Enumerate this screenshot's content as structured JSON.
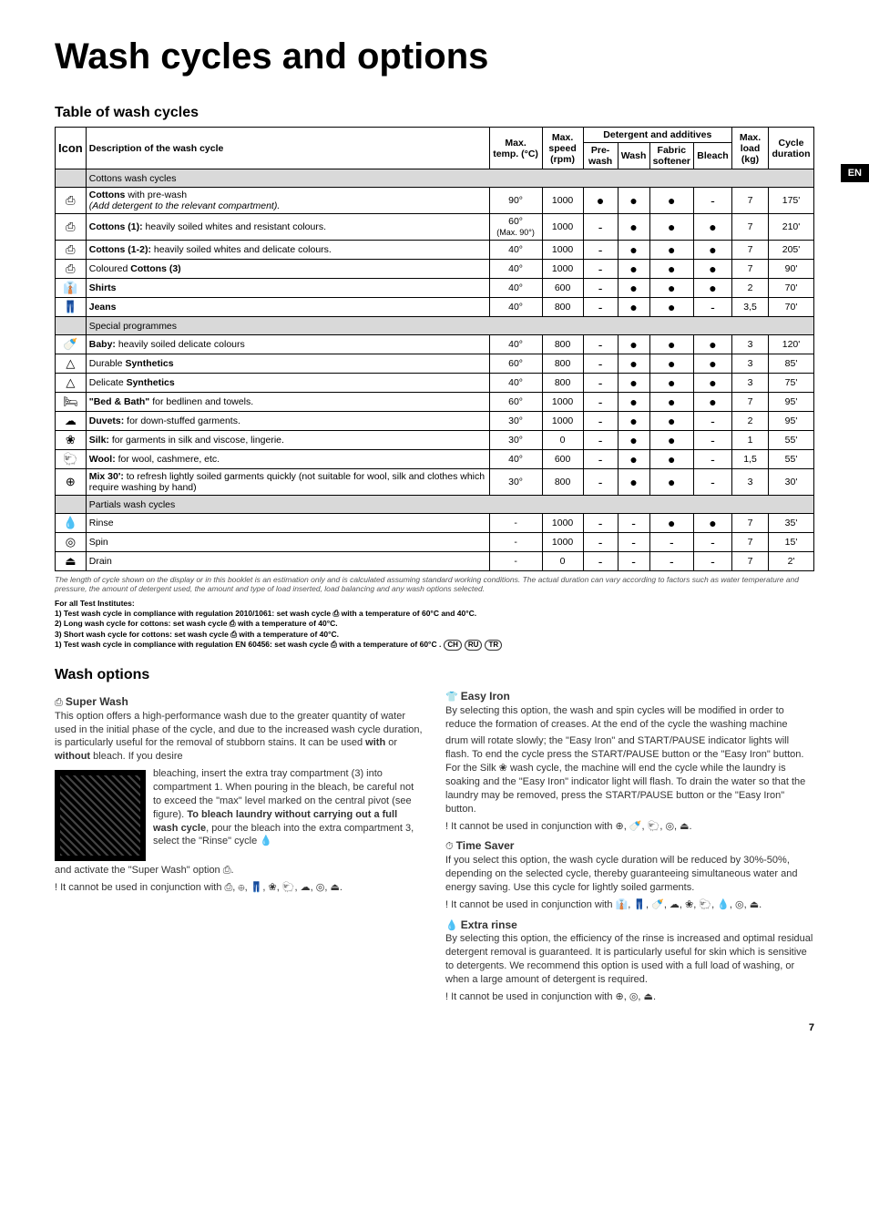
{
  "page_title": "Wash cycles and options",
  "lang_tab": "EN",
  "table_title": "Table of wash cycles",
  "headers": {
    "icon": "Icon",
    "desc": "Description of the wash cycle",
    "temp": "Max. temp. (°C)",
    "speed": "Max. speed (rpm)",
    "det_group": "Detergent and additives",
    "prewash": "Pre-wash",
    "wash": "Wash",
    "softener": "Fabric softener",
    "bleach": "Bleach",
    "load": "Max. load (kg)",
    "duration": "Cycle duration"
  },
  "sections": [
    {
      "name": "Cottons wash cycles",
      "rows": [
        {
          "icon": "⎙",
          "desc_bold": "Cottons",
          "desc_rest": " with pre-wash",
          "desc_italic": "(Add detergent to the relevant compartment).",
          "temp": "90°",
          "speed": "1000",
          "pre": "●",
          "wash": "●",
          "soft": "●",
          "bleach": "-",
          "load": "7",
          "dur": "175'"
        },
        {
          "icon": "⎙",
          "desc_bold": "Cottons (1):",
          "desc_rest": " heavily soiled whites and resistant colours.",
          "temp": "60°",
          "temp2": "(Max. 90°)",
          "speed": "1000",
          "pre": "-",
          "wash": "●",
          "soft": "●",
          "bleach": "●",
          "load": "7",
          "dur": "210'"
        },
        {
          "icon": "⎙",
          "desc_bold": "Cottons (1-2):",
          "desc_rest": " heavily soiled whites and delicate colours.",
          "temp": "40°",
          "speed": "1000",
          "pre": "-",
          "wash": "●",
          "soft": "●",
          "bleach": "●",
          "load": "7",
          "dur": "205'"
        },
        {
          "icon": "⎙",
          "desc_bold": "",
          "desc_rest": "Coloured ",
          "desc_bold2": "Cottons (3)",
          "temp": "40°",
          "speed": "1000",
          "pre": "-",
          "wash": "●",
          "soft": "●",
          "bleach": "●",
          "load": "7",
          "dur": "90'"
        },
        {
          "icon": "👔",
          "desc_bold": "Shirts",
          "desc_rest": "",
          "temp": "40°",
          "speed": "600",
          "pre": "-",
          "wash": "●",
          "soft": "●",
          "bleach": "●",
          "load": "2",
          "dur": "70'"
        },
        {
          "icon": "👖",
          "desc_bold": "Jeans",
          "desc_rest": "",
          "temp": "40°",
          "speed": "800",
          "pre": "-",
          "wash": "●",
          "soft": "●",
          "bleach": "-",
          "load": "3,5",
          "dur": "70'"
        }
      ]
    },
    {
      "name": "Special programmes",
      "rows": [
        {
          "icon": "🍼",
          "desc_bold": "Baby:",
          "desc_rest": " heavily soiled delicate colours",
          "temp": "40°",
          "speed": "800",
          "pre": "-",
          "wash": "●",
          "soft": "●",
          "bleach": "●",
          "load": "3",
          "dur": "120'"
        },
        {
          "icon": "△",
          "desc_bold": "",
          "desc_rest": "Durable ",
          "desc_bold2": "Synthetics",
          "temp": "60°",
          "speed": "800",
          "pre": "-",
          "wash": "●",
          "soft": "●",
          "bleach": "●",
          "load": "3",
          "dur": "85'"
        },
        {
          "icon": "△",
          "desc_bold": "",
          "desc_rest": "Delicate ",
          "desc_bold2": "Synthetics",
          "temp": "40°",
          "speed": "800",
          "pre": "-",
          "wash": "●",
          "soft": "●",
          "bleach": "●",
          "load": "3",
          "dur": "75'"
        },
        {
          "icon": "🛏",
          "desc_bold": "\"Bed & Bath\"",
          "desc_rest": " for bedlinen and towels.",
          "temp": "60°",
          "speed": "1000",
          "pre": "-",
          "wash": "●",
          "soft": "●",
          "bleach": "●",
          "load": "7",
          "dur": "95'"
        },
        {
          "icon": "☁",
          "desc_bold": "Duvets:",
          "desc_rest": " for down-stuffed garments.",
          "temp": "30°",
          "speed": "1000",
          "pre": "-",
          "wash": "●",
          "soft": "●",
          "bleach": "-",
          "load": "2",
          "dur": "95'"
        },
        {
          "icon": "❀",
          "desc_bold": "Silk:",
          "desc_rest": " for garments in silk and viscose, lingerie.",
          "temp": "30°",
          "speed": "0",
          "pre": "-",
          "wash": "●",
          "soft": "●",
          "bleach": "-",
          "load": "1",
          "dur": "55'"
        },
        {
          "icon": "🐑",
          "desc_bold": "Wool:",
          "desc_rest": " for wool, cashmere, etc.",
          "temp": "40°",
          "speed": "600",
          "pre": "-",
          "wash": "●",
          "soft": "●",
          "bleach": "-",
          "load": "1,5",
          "dur": "55'"
        },
        {
          "icon": "⊕",
          "desc_bold": "Mix 30':",
          "desc_rest": " to refresh lightly soiled garments quickly (not suitable for wool, silk and clothes which require washing by hand)",
          "temp": "30°",
          "speed": "800",
          "pre": "-",
          "wash": "●",
          "soft": "●",
          "bleach": "-",
          "load": "3",
          "dur": "30'"
        }
      ]
    },
    {
      "name": "Partials wash cycles",
      "rows": [
        {
          "icon": "💧",
          "desc_bold": "",
          "desc_rest": "Rinse",
          "temp": "-",
          "speed": "1000",
          "pre": "-",
          "wash": "-",
          "soft": "●",
          "bleach": "●",
          "load": "7",
          "dur": "35'"
        },
        {
          "icon": "◎",
          "desc_bold": "",
          "desc_rest": "Spin",
          "temp": "-",
          "speed": "1000",
          "pre": "-",
          "wash": "-",
          "soft": "-",
          "bleach": "-",
          "load": "7",
          "dur": "15'"
        },
        {
          "icon": "⏏",
          "desc_bold": "",
          "desc_rest": "Drain",
          "temp": "-",
          "speed": "0",
          "pre": "-",
          "wash": "-",
          "soft": "-",
          "bleach": "-",
          "load": "7",
          "dur": "2'"
        }
      ]
    }
  ],
  "footnote": "The length of cycle shown on the display or in this booklet is an estimation only and is calculated assuming standard working conditions. The actual duration can vary according to factors such as water temperature and pressure, the amount of detergent used, the amount and type of load inserted, load balancing and any wash options selected.",
  "institutes_title": "For all Test Institutes:",
  "institutes_lines": [
    "1) Test wash cycle in compliance with regulation 2010/1061: set wash cycle ⎙ with a temperature of 60°C and 40°C.",
    "2) Long wash cycle for cottons: set wash cycle ⎙ with a temperature of 40°C.",
    "3) Short wash cycle for cottons: set wash cycle ⎙ with a temperature of 40°C.",
    "1) Test wash cycle in compliance with regulation EN 60456: set wash cycle ⎙ with a temperature of 60°C ."
  ],
  "country_badges": [
    "CH",
    "RU",
    "TR"
  ],
  "wash_options_title": "Wash options",
  "opts": {
    "super_wash": {
      "title": "Super Wash",
      "icon": "⎙",
      "p1": "This option offers a high-performance wash due to the greater quantity of water used in the initial phase of the cycle, and due to the increased wash cycle duration, is particularly useful for the removal of stubborn stains. It can be used ",
      "p1_b1": "with",
      "p1_mid": " or ",
      "p1_b2": "without",
      "p1_end": " bleach. If you desire",
      "p2": "bleaching, insert the extra tray compartment (3) into compartment 1. When pouring in the bleach, be careful not to exceed the \"max\" level marked on the central pivot (see figure).",
      "p2b": "To bleach laundry without carrying out a full wash cycle",
      "p2c": ", pour the bleach into the extra compartment 3, select the \"Rinse\" cycle 💧",
      "p3": "and activate the \"Super Wash\" option ⎙.",
      "warn": "! It cannot be used in conjunction with ⎙, ⊕, 👖, ❀, 🐑, ☁, ◎, ⏏."
    },
    "easy_iron": {
      "title": "Easy Iron",
      "icon": "👕",
      "p1": "By selecting this option, the wash and spin cycles will be modified in order to reduce the formation of creases. At the end of the cycle the washing machine",
      "p2": "drum will rotate slowly; the \"Easy Iron\" and START/PAUSE indicator lights will flash. To end the cycle press the START/PAUSE button or the \"Easy Iron\" button. For the Silk ❀ wash cycle, the machine will end the cycle while the laundry is soaking and the \"Easy Iron\" indicator light will flash. To drain the water so that the laundry may be removed, press the START/PAUSE button or the \"Easy Iron\" button.",
      "warn": "! It cannot be used in conjunction with ⊕, 🍼, 🐑, ◎, ⏏."
    },
    "time_saver": {
      "title": "Time Saver",
      "icon": "⏱",
      "p1": "If you select this option, the wash cycle duration will be reduced by 30%-50%, depending on the selected cycle, thereby guaranteeing simultaneous water and energy saving. Use this cycle for lightly soiled garments.",
      "warn": "! It cannot be used in conjunction with 👔, 👖, 🍼, ☁, ❀, 🐑, 💧, ◎, ⏏."
    },
    "extra_rinse": {
      "title": "Extra rinse",
      "icon": "💧",
      "p1": "By selecting this option, the efficiency of the rinse is increased and optimal residual detergent removal is guaranteed. It is particularly useful for skin which is sensitive to detergents. We recommend this option is used with a full load of washing, or when a large amount of detergent is required.",
      "warn": "! It cannot be used in conjunction with ⊕, ◎, ⏏."
    }
  },
  "page_number": "7"
}
